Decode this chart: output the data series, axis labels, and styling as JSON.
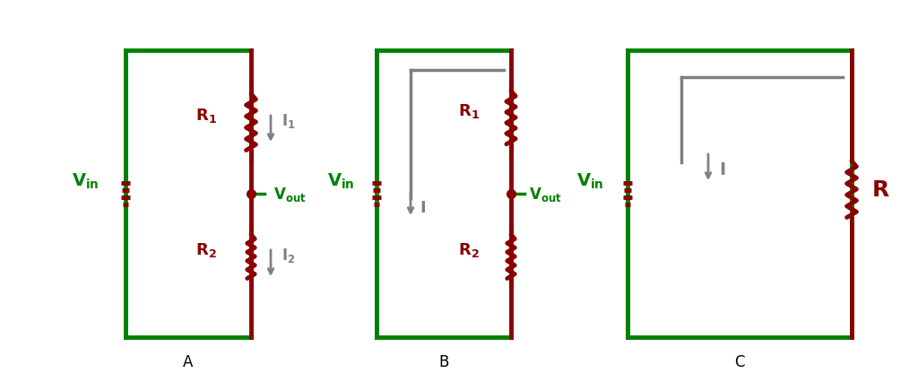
{
  "green": "#008000",
  "dark_red": "#8B0000",
  "gray": "#808080",
  "bg": "#ffffff",
  "lw_thick": 3.5,
  "lw_thin": 2.5,
  "fig_w": 10.24,
  "fig_h": 4.27,
  "label_A": "A",
  "label_B": "B",
  "label_C": "C"
}
